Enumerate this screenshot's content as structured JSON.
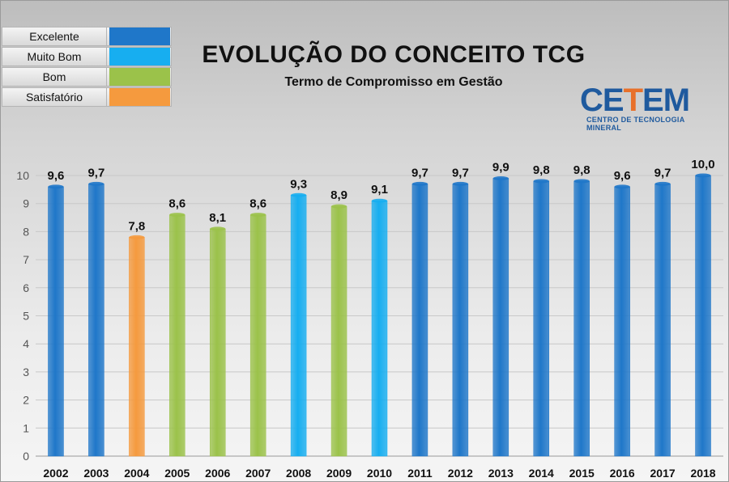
{
  "legend": {
    "items": [
      {
        "label": "Excelente",
        "color": "#1f77c9"
      },
      {
        "label": "Muito Bom",
        "color": "#17aef0"
      },
      {
        "label": "Bom",
        "color": "#9bc24a"
      },
      {
        "label": "Satisfatório",
        "color": "#f59a3e"
      }
    ]
  },
  "header": {
    "title": "EVOLUÇÃO DO CONCEITO TCG",
    "subtitle": "Termo de Compromisso em Gestão"
  },
  "logo": {
    "text_start": "CE",
    "text_accent": "T",
    "text_end": "EM",
    "tagline": "CENTRO DE TECNOLOGIA MINERAL"
  },
  "chart_data": {
    "type": "bar",
    "title": "EVOLUÇÃO DO CONCEITO TCG",
    "subtitle": "Termo de Compromisso em Gestão",
    "xlabel": "",
    "ylabel": "",
    "ylim": [
      0,
      10
    ],
    "yticks": [
      0,
      1,
      2,
      3,
      4,
      5,
      6,
      7,
      8,
      9,
      10
    ],
    "categories": [
      "2002",
      "2003",
      "2004",
      "2005",
      "2006",
      "2007",
      "2008",
      "2009",
      "2010",
      "2011",
      "2012",
      "2013",
      "2014",
      "2015",
      "2016",
      "2017",
      "2018"
    ],
    "values": [
      9.6,
      9.7,
      7.8,
      8.6,
      8.1,
      8.6,
      9.3,
      8.9,
      9.1,
      9.7,
      9.7,
      9.9,
      9.8,
      9.8,
      9.6,
      9.7,
      10.0
    ],
    "labels": [
      "9,6",
      "9,7",
      "7,8",
      "8,6",
      "8,1",
      "8,6",
      "9,3",
      "8,9",
      "9,1",
      "9,7",
      "9,7",
      "9,9",
      "9,8",
      "9,8",
      "9,6",
      "9,7",
      "10,0"
    ],
    "concepts": [
      "Excelente",
      "Excelente",
      "Satisfatório",
      "Bom",
      "Bom",
      "Bom",
      "Muito Bom",
      "Bom",
      "Muito Bom",
      "Excelente",
      "Excelente",
      "Excelente",
      "Excelente",
      "Excelente",
      "Excelente",
      "Excelente",
      "Excelente"
    ],
    "grid": true,
    "legend_position": "top-left"
  }
}
